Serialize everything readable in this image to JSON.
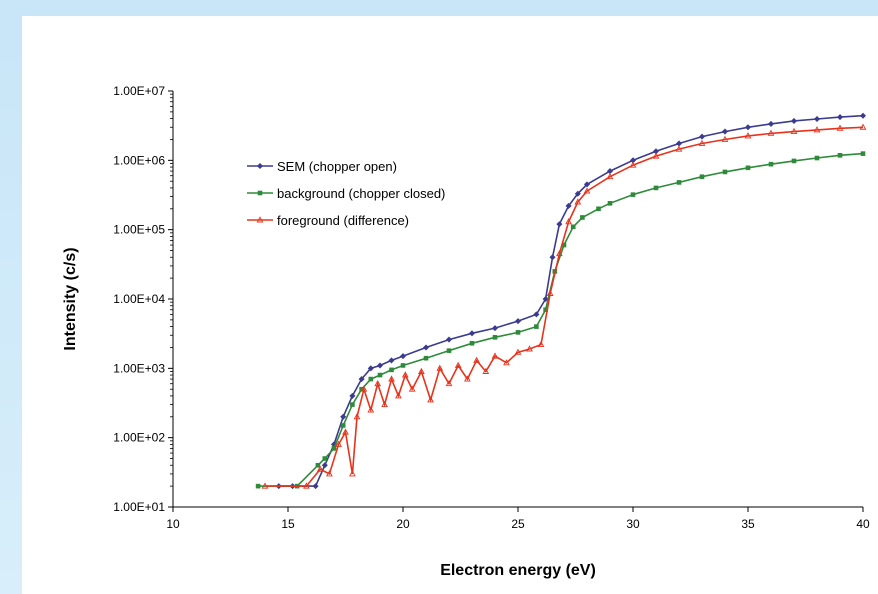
{
  "chart_data": {
    "type": "line",
    "xlabel": "Electron energy (eV)",
    "ylabel": "Intensity (c/s)",
    "xlim": [
      10,
      40
    ],
    "ylim": [
      10,
      10000000
    ],
    "yscale": "log",
    "grid": false,
    "legend_position": "upper-left",
    "x_ticks": [
      "10",
      "15",
      "20",
      "25",
      "30",
      "35",
      "40"
    ],
    "y_ticks": [
      "1.00E+01",
      "1.00E+02",
      "1.00E+03",
      "1.00E+04",
      "1.00E+05",
      "1.00E+06",
      "1.00E+07"
    ],
    "series": [
      {
        "name": "SEM (chopper open)",
        "color": "#3b3b8f",
        "marker": "diamond",
        "x": [
          14.6,
          15.2,
          16.2,
          16.6,
          17.0,
          17.4,
          17.8,
          18.2,
          18.6,
          19.0,
          19.5,
          20.0,
          21.0,
          22.0,
          23.0,
          24.0,
          25.0,
          25.8,
          26.2,
          26.5,
          26.8,
          27.2,
          27.6,
          28.0,
          29.0,
          30.0,
          31.0,
          32.0,
          33.0,
          34.0,
          35.0,
          36.0,
          37.0,
          38.0,
          39.0,
          40.0
        ],
        "y": [
          20,
          20,
          20,
          40,
          80,
          200,
          400,
          700,
          1000,
          1100,
          1300,
          1500,
          2000,
          2600,
          3200,
          3800,
          4800,
          6000,
          10000,
          40000,
          120000,
          220000,
          330000,
          450000,
          700000,
          1000000,
          1350000,
          1750000,
          2200000,
          2600000,
          3000000,
          3350000,
          3700000,
          3950000,
          4200000,
          4400000
        ]
      },
      {
        "name": "background (chopper closed)",
        "color": "#2e8b3a",
        "marker": "square",
        "x": [
          13.7,
          15.4,
          16.3,
          16.6,
          17.0,
          17.4,
          17.8,
          18.2,
          18.6,
          19.0,
          19.5,
          20.0,
          21.0,
          22.0,
          23.0,
          24.0,
          25.0,
          25.8,
          26.2,
          26.6,
          27.0,
          27.4,
          27.8,
          28.5,
          29.0,
          30.0,
          31.0,
          32.0,
          33.0,
          34.0,
          35.0,
          36.0,
          37.0,
          38.0,
          39.0,
          40.0
        ],
        "y": [
          20,
          20,
          40,
          50,
          70,
          150,
          300,
          500,
          700,
          800,
          950,
          1100,
          1400,
          1800,
          2300,
          2800,
          3300,
          4000,
          7000,
          25000,
          60000,
          110000,
          150000,
          200000,
          240000,
          320000,
          400000,
          480000,
          580000,
          680000,
          780000,
          880000,
          980000,
          1080000,
          1180000,
          1250000
        ]
      },
      {
        "name": "foreground (difference)",
        "color": "#e8331c",
        "marker": "triangle",
        "x": [
          14.0,
          15.8,
          16.4,
          16.8,
          17.2,
          17.5,
          17.8,
          18.0,
          18.3,
          18.6,
          18.9,
          19.2,
          19.5,
          19.8,
          20.1,
          20.4,
          20.8,
          21.2,
          21.6,
          22.0,
          22.4,
          22.8,
          23.2,
          23.6,
          24.0,
          24.5,
          25.0,
          25.5,
          26.0,
          26.4,
          26.8,
          27.2,
          27.6,
          28.0,
          29.0,
          30.0,
          31.0,
          32.0,
          33.0,
          34.0,
          35.0,
          36.0,
          37.0,
          38.0,
          39.0,
          40.0
        ],
        "y": [
          20,
          20,
          35,
          30,
          80,
          120,
          30,
          200,
          500,
          250,
          600,
          300,
          700,
          400,
          800,
          500,
          900,
          350,
          1000,
          600,
          1100,
          700,
          1300,
          900,
          1500,
          1200,
          1700,
          1900,
          2200,
          12000,
          45000,
          130000,
          250000,
          360000,
          580000,
          850000,
          1150000,
          1450000,
          1750000,
          2000000,
          2250000,
          2450000,
          2600000,
          2750000,
          2900000,
          3000000
        ]
      }
    ]
  }
}
